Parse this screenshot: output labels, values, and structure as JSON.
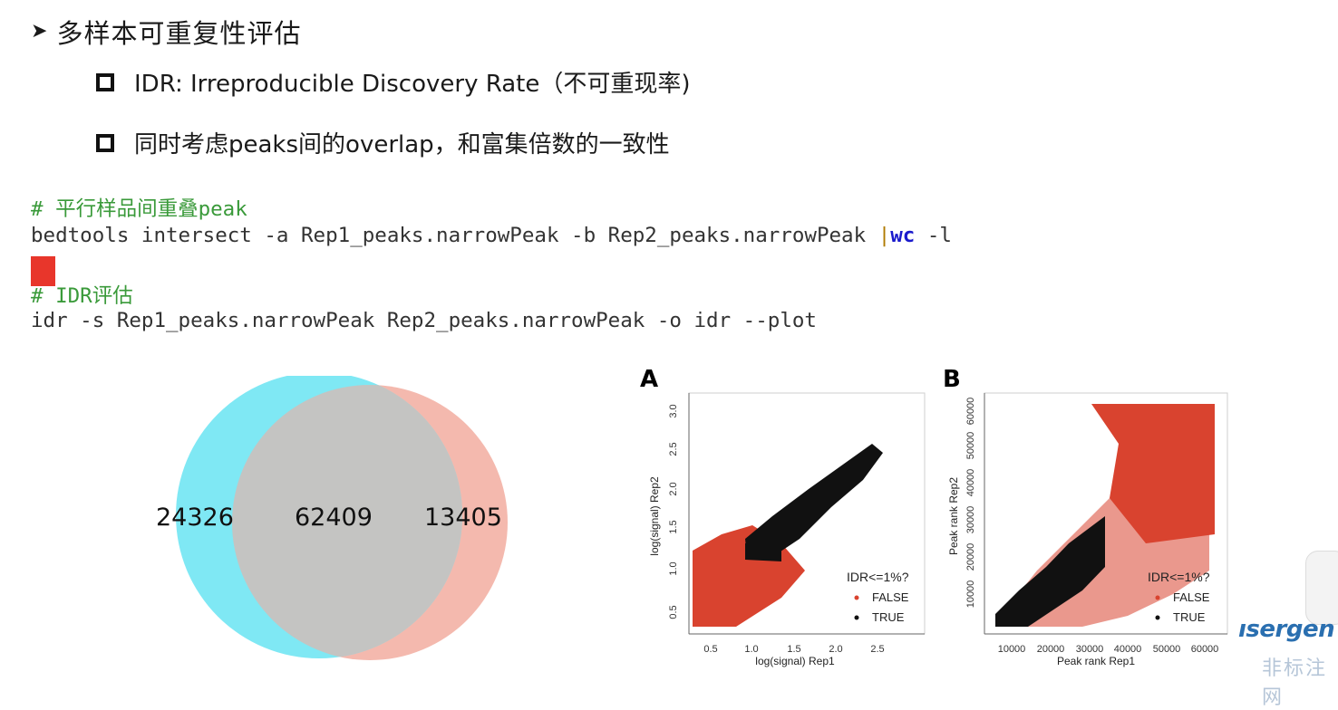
{
  "slide": {
    "title": "多样本可重复性评估",
    "bullets": [
      "IDR:  Irreproducible Discovery Rate（不可重现率)",
      "同时考虑peaks间的overlap，和富集倍数的一致性"
    ]
  },
  "code": {
    "comment1": "# 平行样品间重叠peak",
    "line1_main": "bedtools intersect -a Rep1_peaks.narrowPeak -b Rep2_peaks.narrowPeak ",
    "line1_pipe": "|",
    "line1_kw": "wc",
    "line1_tail": " -l",
    "comment2": "# IDR评估",
    "line2": "idr -s Rep1_peaks.narrowPeak Rep2_peaks.narrowPeak -o idr --plot"
  },
  "venn": {
    "left_only": "24326",
    "overlap": "62409",
    "right_only": "13405",
    "colors": {
      "left": "#7fe8f4",
      "right": "#f4b9ae",
      "overlap": "#c4c4c2"
    }
  },
  "plots": {
    "A": {
      "letter": "A",
      "xlabel": "log(signal) Rep1",
      "ylabel": "log(signal) Rep2",
      "xticks": [
        "0.5",
        "1.0",
        "1.5",
        "2.0",
        "2.5"
      ],
      "yticks": [
        "0.5",
        "1.0",
        "1.5",
        "2.0",
        "2.5",
        "3.0"
      ],
      "legend_title": "IDR<=1%?",
      "legend": [
        "FALSE",
        "TRUE"
      ]
    },
    "B": {
      "letter": "B",
      "xlabel": "Peak rank Rep1",
      "ylabel": "Peak rank Rep2",
      "xticks": [
        "10000",
        "20000",
        "30000",
        "40000",
        "50000",
        "60000"
      ],
      "yticks": [
        "10000",
        "20000",
        "30000",
        "40000",
        "50000",
        "60000"
      ],
      "legend_title": "IDR<=1%?",
      "legend": [
        "FALSE",
        "TRUE"
      ]
    },
    "colors": {
      "false": "#d9432f",
      "true": "#111111"
    }
  },
  "branding": {
    "logo": "ısergen",
    "watermark": "非标注网"
  }
}
